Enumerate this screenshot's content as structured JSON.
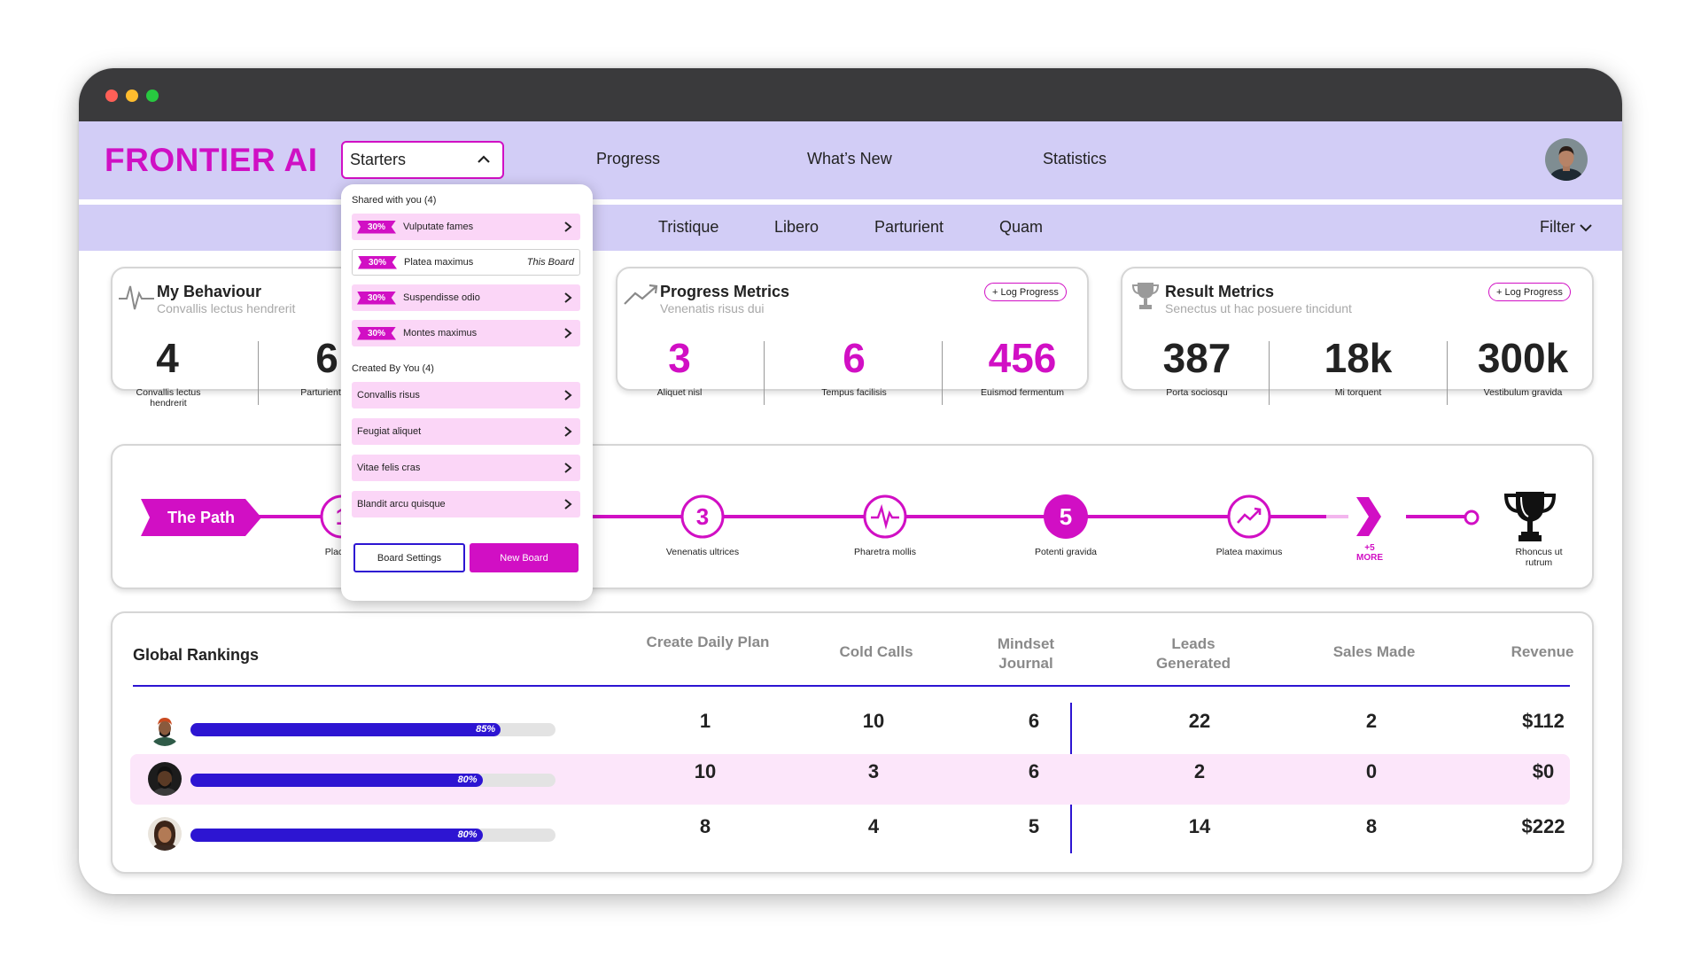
{
  "app": {
    "brand": "FRONTIER AI",
    "select_value": "Starters",
    "nav": [
      "Progress",
      "What’s New",
      "Statistics"
    ],
    "subnav": [
      "Tristique",
      "Libero",
      "Parturient",
      "Quam"
    ],
    "filter_label": "Filter"
  },
  "colors": {
    "accent": "#d10fc4",
    "primary": "#2d15d2",
    "nav_bg": "#d2cdf6",
    "highlight_row": "#fce6fa"
  },
  "behaviour": {
    "title": "My Behaviour",
    "subtitle": "Convallis lectus hendrerit",
    "metrics": [
      {
        "value": "4",
        "label": "Convallis lectus hendrerit"
      },
      {
        "value": "6",
        "label": "Parturient ac"
      }
    ]
  },
  "progress_metrics": {
    "title": "Progress Metrics",
    "subtitle": "Venenatis risus dui",
    "log_button": "+ Log Progress",
    "metrics": [
      {
        "value": "3",
        "label": "Aliquet nisl"
      },
      {
        "value": "6",
        "label": "Tempus facilisis"
      },
      {
        "value": "456",
        "label": "Euismod fermentum"
      }
    ]
  },
  "result_metrics": {
    "title": "Result Metrics",
    "subtitle": "Senectus ut hac posuere tincidunt",
    "log_button": "+ Log Progress",
    "metrics": [
      {
        "value": "387",
        "label": "Porta sociosqu"
      },
      {
        "value": "18k",
        "label": "Mi torquent"
      },
      {
        "value": "300k",
        "label": "Vestibulum gravida"
      }
    ]
  },
  "path": {
    "banner": "The Path",
    "steps": [
      {
        "num": "1",
        "label": "Placerat"
      },
      {
        "num": "3",
        "label": "Venenatis ultrices"
      },
      {
        "icon": "heartbeat-icon",
        "label": "Pharetra mollis"
      },
      {
        "num": "5",
        "label": "Potenti gravida"
      },
      {
        "icon": "trend-up-icon",
        "label": "Platea maximus"
      }
    ],
    "more_count": "+5",
    "more_label": "MORE",
    "goal_label": "Rhoncus ut rutrum"
  },
  "rankings": {
    "title": "Global Rankings",
    "columns": [
      "Create Daily Plan",
      "Cold Calls",
      "Mindset Journal",
      "Leads Generated",
      "Sales Made",
      "Revenue"
    ],
    "rows": [
      {
        "progress": 85,
        "progress_label": "85%",
        "values": [
          "1",
          "10",
          "6",
          "22",
          "2",
          "$112"
        ]
      },
      {
        "progress": 80,
        "progress_label": "80%",
        "values": [
          "10",
          "3",
          "6",
          "2",
          "0",
          "$0"
        ]
      },
      {
        "progress": 80,
        "progress_label": "80%",
        "values": [
          "8",
          "4",
          "5",
          "14",
          "8",
          "$222"
        ]
      }
    ]
  },
  "dropdown": {
    "shared_header": "Shared with you (4)",
    "shared": [
      {
        "badge": "30%",
        "label": "Vulputate fames"
      },
      {
        "badge": "30%",
        "label": "Platea maximus",
        "tag": "This Board"
      },
      {
        "badge": "30%",
        "label": "Suspendisse odio"
      },
      {
        "badge": "30%",
        "label": "Montes maximus"
      }
    ],
    "created_header": "Created By You (4)",
    "created": [
      "Convallis risus",
      "Feugiat aliquet",
      "Vitae felis cras",
      "Blandit arcu quisque"
    ],
    "settings_button": "Board Settings",
    "new_button": "New Board"
  }
}
